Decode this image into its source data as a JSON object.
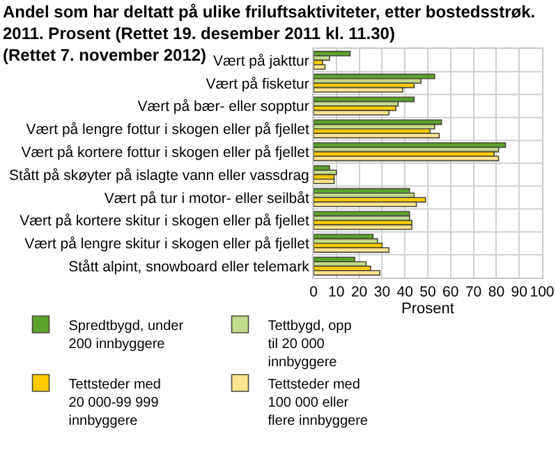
{
  "chart_data": {
    "type": "bar",
    "orientation": "horizontal",
    "title": "Andel som har deltatt på ulike friluftsaktiviteter, etter bostedsstrøk.\n2011. Prosent (Rettet 19. desember 2011 kl. 11.30)\n(Rettet 7. november 2012)",
    "xlabel": "Prosent",
    "categories": [
      "Vært på jakttur",
      "Vært på fisketur",
      "Vært på bær- eller sopptur",
      "Vært på lengre fottur i skogen eller på fjellet",
      "Vært på kortere fottur i skogen eller på fjellet",
      "Stått på skøyter på islagte vann eller vassdrag",
      "Vært på tur i motor- eller seilbåt",
      "Vært på kortere skitur i skogen eller på fjellet",
      "Vært på lengre skitur i skogen eller på fjellet",
      "Stått alpint, snowboard eller telemark"
    ],
    "series": [
      {
        "name": "Spredtbygd, under\n200 innbyggere",
        "color": "#5da22d",
        "values": [
          16,
          53,
          44,
          56,
          84,
          7,
          42,
          42,
          26,
          18
        ]
      },
      {
        "name": "Tettbygd, opp\ntil 20 000\ninnbyggere",
        "color": "#c3db8c",
        "values": [
          7,
          47,
          37,
          53,
          81,
          10,
          44,
          42,
          28,
          23
        ]
      },
      {
        "name": "Tettsteder med\n20 000-99 999\ninnbyggere",
        "color": "#ffcc00",
        "values": [
          4,
          44,
          36,
          51,
          79,
          9,
          49,
          43,
          30,
          25
        ]
      },
      {
        "name": "Tettsteder med\n100 000 eller\nflere innbyggere",
        "color": "#ffe58f",
        "values": [
          5,
          39,
          33,
          55,
          81,
          9,
          45,
          43,
          33,
          29
        ]
      }
    ],
    "xlim": [
      0,
      100
    ],
    "xticks": [
      0,
      10,
      20,
      30,
      40,
      50,
      60,
      70,
      80,
      90,
      100
    ],
    "grid": true,
    "legend": "bottom"
  }
}
